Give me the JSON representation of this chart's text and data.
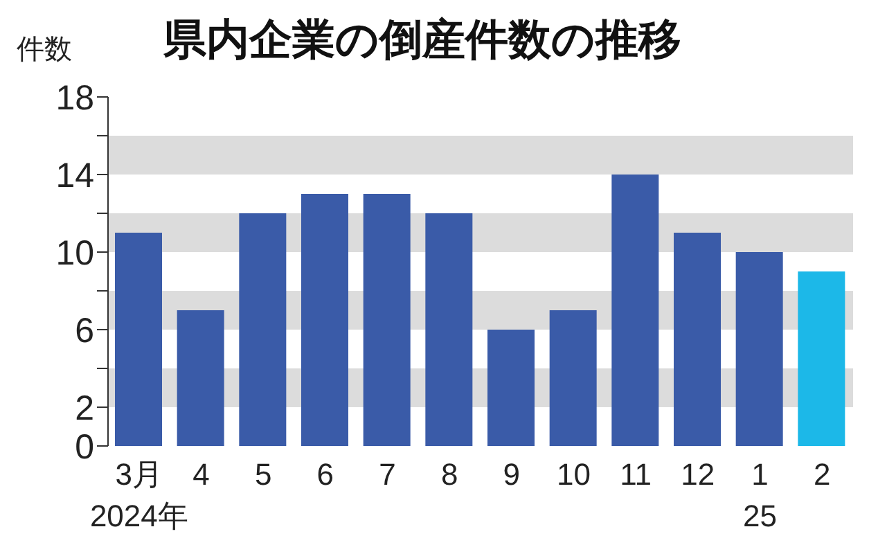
{
  "chart_data": {
    "type": "bar",
    "title": "県内企業の倒産件数の推移",
    "ylabel": "件数",
    "categories": [
      "3月\n2024年",
      "4",
      "5",
      "6",
      "7",
      "8",
      "9",
      "10",
      "11",
      "12",
      "1\n25",
      "2"
    ],
    "values": [
      11,
      7,
      12,
      13,
      13,
      12,
      6,
      7,
      14,
      11,
      10,
      9
    ],
    "colors": [
      "#3a5ba8",
      "#3a5ba8",
      "#3a5ba8",
      "#3a5ba8",
      "#3a5ba8",
      "#3a5ba8",
      "#3a5ba8",
      "#3a5ba8",
      "#3a5ba8",
      "#3a5ba8",
      "#3a5ba8",
      "#1cb8e8"
    ],
    "ylim": [
      0,
      18
    ],
    "yticks": [
      0,
      2,
      {
        "value": 4,
        "label": null
      },
      6,
      {
        "value": 8,
        "label": null
      },
      10,
      {
        "value": 12,
        "label": null
      },
      14,
      {
        "value": 16,
        "label": null
      },
      18
    ],
    "bands": [
      {
        "axis": "y",
        "from": 2,
        "to": 4,
        "color": "#dcdcdc"
      },
      {
        "axis": "y",
        "from": 6,
        "to": 8,
        "color": "#dcdcdc"
      },
      {
        "axis": "y",
        "from": 10,
        "to": 12,
        "color": "#dcdcdc"
      },
      {
        "axis": "y",
        "from": 14,
        "to": 16,
        "color": "#dcdcdc"
      }
    ],
    "legend": false
  }
}
